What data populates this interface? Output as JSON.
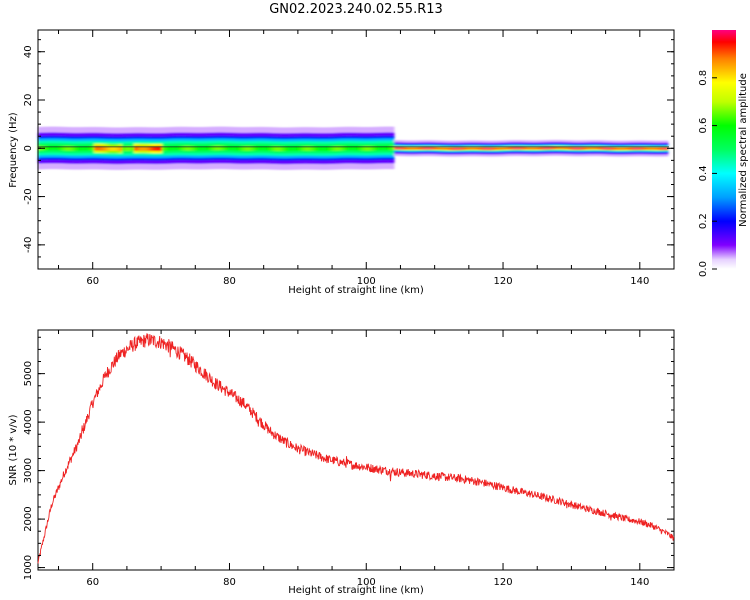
{
  "page_title": "GN02.2023.240.02.55.R13",
  "chart_data": [
    {
      "type": "heatmap",
      "title": "",
      "xlabel": "Height of straight line (km)",
      "ylabel": "Frequency (Hz)",
      "xlim": [
        52,
        145
      ],
      "ylim": [
        -50,
        49
      ],
      "xticks": [
        60,
        80,
        100,
        120,
        140
      ],
      "xtick_labels": [
        "60",
        "80",
        "100",
        "120",
        "140"
      ],
      "yticks": [
        -40,
        -20,
        0,
        20,
        40
      ],
      "ytick_labels": [
        "-40",
        "-20",
        "0",
        "20",
        "40"
      ],
      "grid": false,
      "colorbar": {
        "label": "Normalized spectral amplitude",
        "range": [
          0,
          1
        ],
        "ticks": [
          0.0,
          0.2,
          0.4,
          0.6,
          0.8
        ],
        "tick_labels": [
          "0.0",
          "0.2",
          "0.4",
          "0.6",
          "0.8"
        ],
        "colormap": "rainbow"
      },
      "band": {
        "center_hz": 0,
        "halfwidth_start_hz": 4,
        "halfwidth_end_hz": 1.5,
        "narrowing_height_km": 104,
        "peak_segments": [
          {
            "x": [
              60,
              64
            ],
            "amp": 0.85
          },
          {
            "x": [
              66,
              70
            ],
            "amp": 0.9
          },
          {
            "x": [
              104,
              145
            ],
            "amp": 0.95
          }
        ]
      }
    },
    {
      "type": "line",
      "title": "",
      "xlabel": "Height of straight line (km)",
      "ylabel": "SNR (10 * v/v)",
      "xlim": [
        52,
        145
      ],
      "ylim": [
        950,
        5900
      ],
      "xticks": [
        60,
        80,
        100,
        120,
        140
      ],
      "xtick_labels": [
        "60",
        "80",
        "100",
        "120",
        "140"
      ],
      "yticks": [
        1000,
        2000,
        3000,
        4000,
        5000
      ],
      "ytick_labels": [
        "1000",
        "2000",
        "3000",
        "4000",
        "5000"
      ],
      "grid": false,
      "series": [
        {
          "color": "#ee2222",
          "x": [
            52,
            54,
            56,
            58,
            60,
            62,
            64,
            66,
            68,
            70,
            72,
            74,
            76,
            78,
            80,
            82,
            84,
            86,
            88,
            90,
            92,
            94,
            96,
            98,
            100,
            102,
            104,
            106,
            108,
            110,
            112,
            114,
            116,
            118,
            120,
            122,
            124,
            126,
            128,
            130,
            132,
            134,
            136,
            138,
            140,
            142,
            144,
            145
          ],
          "y": [
            1100,
            2300,
            3000,
            3600,
            4400,
            5000,
            5400,
            5600,
            5700,
            5650,
            5500,
            5300,
            5050,
            4800,
            4600,
            4400,
            4100,
            3800,
            3600,
            3450,
            3350,
            3250,
            3180,
            3120,
            3070,
            3020,
            2980,
            2950,
            2920,
            2890,
            2860,
            2830,
            2780,
            2720,
            2650,
            2580,
            2520,
            2450,
            2380,
            2300,
            2220,
            2150,
            2080,
            2000,
            1950,
            1850,
            1700,
            1600
          ]
        }
      ]
    }
  ]
}
